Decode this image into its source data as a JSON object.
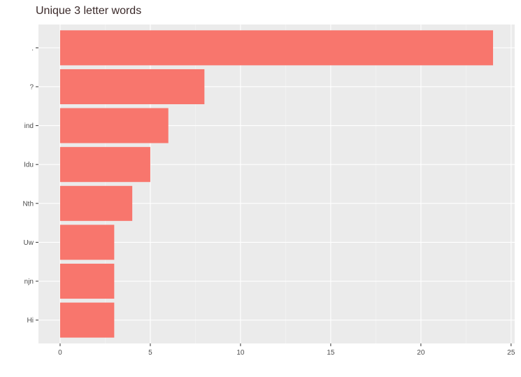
{
  "chart_data": {
    "type": "bar",
    "orientation": "horizontal",
    "title": "Unique 3 letter words",
    "xlabel": "",
    "ylabel": "",
    "categories": [
      ".",
      "?",
      "ind",
      "Idu",
      "Nth",
      "Uw",
      "njn",
      "Hi"
    ],
    "values": [
      24,
      8,
      6,
      5,
      4,
      3,
      3,
      3
    ],
    "xlim": [
      -1.2,
      25.2
    ],
    "x_ticks": [
      0,
      5,
      10,
      15,
      20,
      25
    ],
    "grid": true,
    "legend": "none",
    "colors": {
      "bar": "#F8766D",
      "panel": "#EBEBEB",
      "grid_major": "#FFFFFF",
      "grid_minor": "#F5F5F5"
    }
  }
}
